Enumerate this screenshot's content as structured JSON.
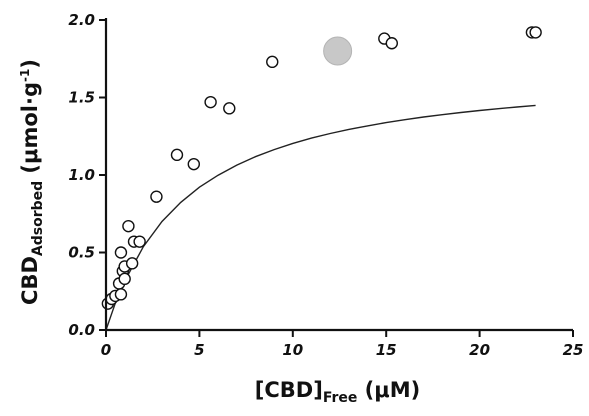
{
  "chart_data": {
    "type": "scatter",
    "xlim": [
      0,
      25
    ],
    "ylim": [
      0,
      2.0
    ],
    "x_ticks": [
      0,
      5,
      10,
      15,
      20,
      25
    ],
    "y_ticks": [
      0.0,
      0.5,
      1.0,
      1.5,
      2.0
    ],
    "x_tick_labels": [
      "0",
      "5",
      "10",
      "15",
      "20",
      "25"
    ],
    "y_tick_labels": [
      "0.0",
      "0.5",
      "1.0",
      "1.5",
      "2.0"
    ],
    "xlabel": {
      "main": "[CBD]",
      "sub": "Free",
      "unit": " (μM)"
    },
    "ylabel": {
      "main": "CBD",
      "sub": "Adsorbed",
      "unit_open": " (μmol·g",
      "unit_sup": "-1",
      "unit_close": ")"
    },
    "grid": false,
    "series": [
      {
        "marker": "open-circle",
        "x": [
          0.1,
          0.3,
          0.5,
          0.7,
          0.8,
          0.8,
          0.9,
          1.0,
          1.0,
          1.2,
          1.4,
          1.5,
          1.8,
          2.7,
          3.8,
          4.7,
          5.6,
          6.6,
          8.9,
          14.9,
          15.3,
          22.8,
          23.0
        ],
        "y": [
          0.17,
          0.2,
          0.22,
          0.3,
          0.5,
          0.23,
          0.38,
          0.33,
          0.41,
          0.67,
          0.43,
          0.57,
          0.57,
          0.86,
          1.13,
          1.07,
          1.47,
          1.43,
          1.73,
          1.88,
          1.85,
          1.92,
          1.92
        ]
      },
      {
        "marker": "filled-circle-gray",
        "x": [
          12.4
        ],
        "y": [
          1.8
        ]
      }
    ],
    "fit": {
      "type": "curve",
      "x": [
        0,
        0.5,
        1,
        2,
        3,
        4,
        5,
        6,
        7,
        8,
        9,
        10,
        11,
        12,
        13,
        14,
        15,
        16,
        17,
        18,
        19,
        20,
        21,
        22,
        23
      ],
      "y": [
        0.0,
        0.173,
        0.316,
        0.538,
        0.7,
        0.823,
        0.921,
        0.999,
        1.064,
        1.118,
        1.164,
        1.204,
        1.238,
        1.268,
        1.294,
        1.317,
        1.338,
        1.357,
        1.374,
        1.389,
        1.403,
        1.416,
        1.428,
        1.439,
        1.449
      ]
    },
    "colors": {
      "axis": "#111111",
      "marker_edge": "#111111",
      "marker_fill": "#ffffff",
      "highlight": "#c8c8c8",
      "highlight_edge": "#b4b4b4",
      "fit": "#222222"
    }
  }
}
